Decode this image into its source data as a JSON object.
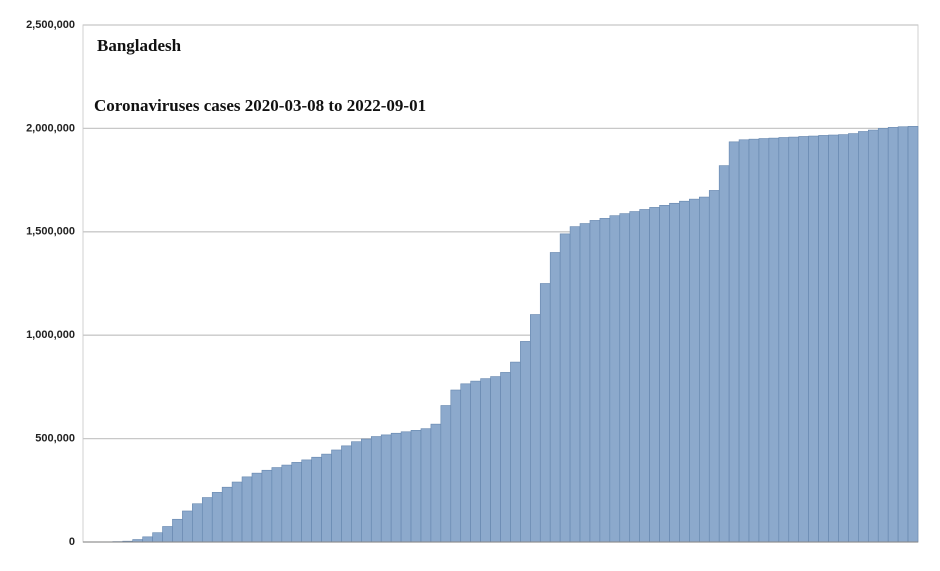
{
  "chart_data": {
    "type": "bar",
    "title": "Bangladesh",
    "subtitle": "Coronaviruses cases 2020-03-08 to 2022-09-01",
    "categories": [
      null,
      null,
      null,
      null,
      null,
      null,
      null,
      null,
      null,
      null,
      null,
      null,
      null,
      null,
      null,
      null,
      null,
      null,
      null,
      null,
      null,
      null,
      null,
      null,
      null,
      null,
      null,
      null,
      null,
      null,
      null,
      null,
      null,
      null,
      null,
      null,
      null,
      null,
      null,
      null,
      null,
      null,
      null,
      null,
      null,
      null,
      null,
      null,
      null,
      null,
      null,
      null,
      null,
      null,
      null,
      null,
      null,
      null,
      null,
      null,
      null,
      null,
      null,
      null,
      null,
      null,
      null,
      null,
      null,
      null,
      null,
      null,
      null,
      null,
      null,
      null,
      null,
      null,
      null,
      null,
      null,
      null,
      null,
      null
    ],
    "values": [
      0,
      500,
      1000,
      2000,
      4000,
      12000,
      25000,
      45000,
      75000,
      110000,
      150000,
      185000,
      215000,
      240000,
      265000,
      290000,
      315000,
      333000,
      347000,
      360000,
      372000,
      385000,
      397000,
      410000,
      425000,
      445000,
      465000,
      485000,
      498000,
      510000,
      518000,
      526000,
      533000,
      540000,
      548000,
      570000,
      660000,
      735000,
      765000,
      778000,
      790000,
      800000,
      820000,
      870000,
      970000,
      1100000,
      1250000,
      1400000,
      1490000,
      1525000,
      1540000,
      1555000,
      1565000,
      1578000,
      1588000,
      1598000,
      1608000,
      1618000,
      1628000,
      1638000,
      1648000,
      1658000,
      1668000,
      1700000,
      1820000,
      1935000,
      1945000,
      1948000,
      1951000,
      1953000,
      1956000,
      1958000,
      1961000,
      1963000,
      1966000,
      1968000,
      1970000,
      1975000,
      1985000,
      1992000,
      2000000,
      2005000,
      2008000,
      2010000
    ],
    "color": "#8ca9cc",
    "ylim": [
      0,
      2500000
    ],
    "yticks": [
      0,
      {
        "value": 500000,
        "label": "500,000"
      },
      {
        "value": 1000000,
        "label": "1,000,000"
      },
      {
        "value": 1500000,
        "label": "1,500,000"
      },
      {
        "value": 2000000,
        "label": "2,000,000"
      },
      {
        "value": 2500000,
        "label": "2,500,000"
      }
    ],
    "grid": true
  }
}
